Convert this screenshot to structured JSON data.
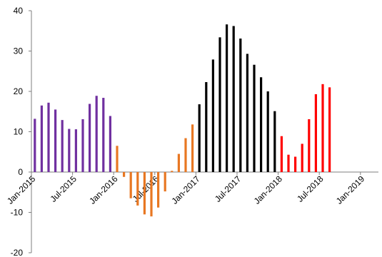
{
  "chart_data": {
    "type": "bar",
    "title": "",
    "xlabel": "",
    "ylabel": "",
    "ylim": [
      -20,
      40
    ],
    "y_ticks": [
      "40",
      "30",
      "20",
      "10",
      "0",
      "-10",
      "-20"
    ],
    "x_ticks": [
      "Jan-2015",
      "Jul-2015",
      "Jan-2016",
      "Jul-2016",
      "Jan-2017",
      "Jul-2017",
      "Jan-2018",
      "Jul-2018",
      "Jan-2019"
    ],
    "grid": false,
    "legend": "none",
    "series": [
      {
        "color": "#7030a0",
        "x": [
          "2015-01",
          "2015-02",
          "2015-03",
          "2015-04",
          "2015-05",
          "2015-06",
          "2015-07",
          "2015-08",
          "2015-09",
          "2015-10",
          "2015-11",
          "2015-12"
        ],
        "values": [
          13.2,
          16.5,
          17.2,
          15.5,
          12.9,
          10.7,
          10.6,
          13.1,
          16.9,
          18.9,
          18.4,
          13.9
        ]
      },
      {
        "color": "#e87722",
        "x": [
          "2016-01",
          "2016-02",
          "2016-03",
          "2016-04",
          "2016-05",
          "2016-06",
          "2016-07",
          "2016-08",
          "2016-09",
          "2016-10",
          "2016-11",
          "2016-12"
        ],
        "values": [
          6.5,
          -1.2,
          -6.5,
          -8.3,
          -10.5,
          -11.0,
          -8.8,
          -4.8,
          0.3,
          4.5,
          8.4,
          11.8
        ]
      },
      {
        "color": "#000000",
        "x": [
          "2017-01",
          "2017-02",
          "2017-03",
          "2017-04",
          "2017-05",
          "2017-06",
          "2017-07",
          "2017-08",
          "2017-09",
          "2017-10",
          "2017-11",
          "2017-12"
        ],
        "values": [
          16.8,
          22.3,
          27.9,
          33.4,
          36.6,
          36.2,
          33.1,
          29.3,
          26.6,
          23.5,
          20.0,
          15.1
        ]
      },
      {
        "color": "#ff0000",
        "x": [
          "2018-01",
          "2018-02",
          "2018-03",
          "2018-04",
          "2018-05",
          "2018-06",
          "2018-07",
          "2018-08",
          "2018-09"
        ],
        "values": [
          8.9,
          4.3,
          3.8,
          7.0,
          13.1,
          19.3,
          21.8,
          21.0,
          null
        ]
      }
    ]
  }
}
